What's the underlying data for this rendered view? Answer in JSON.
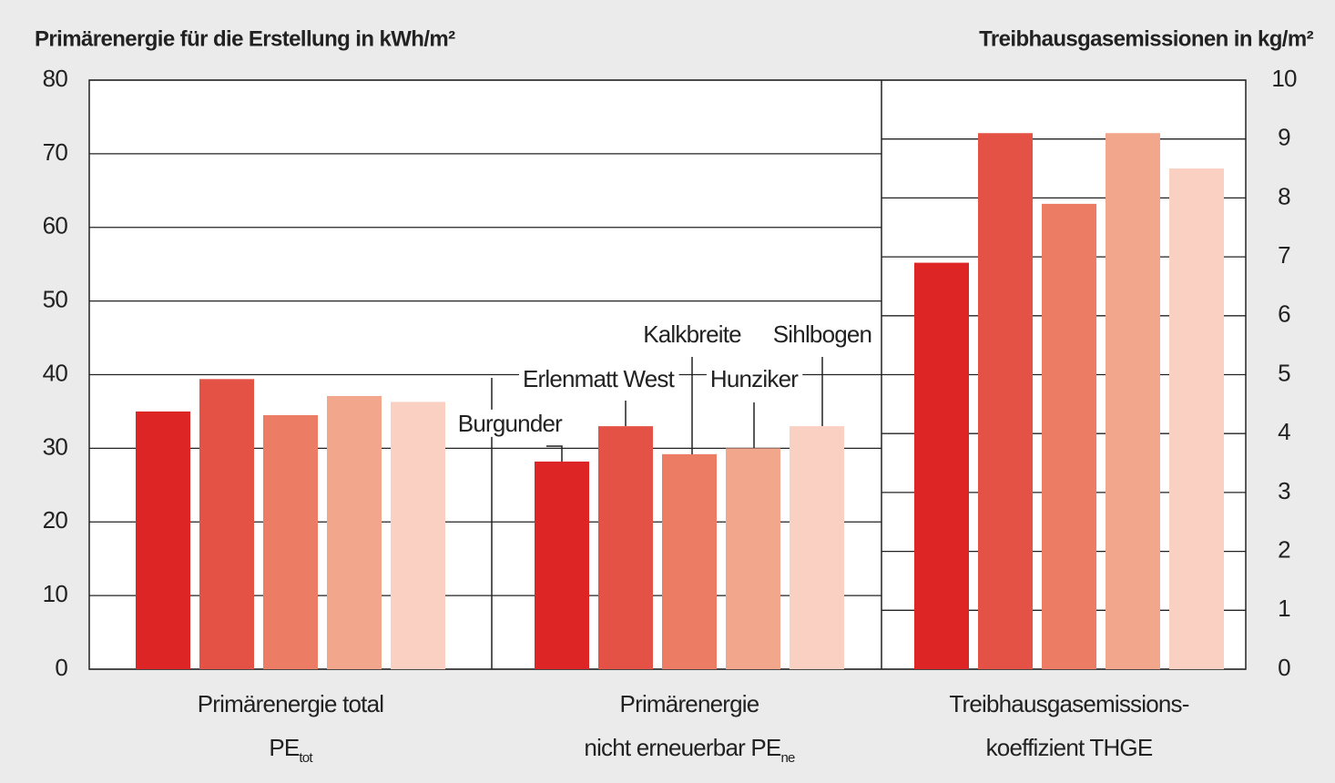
{
  "chart_data": {
    "type": "bar",
    "title": "Primärenergie für die Erstellung in kWh/m²",
    "y2_title": "Treibhausgasemissionen in kg/m²",
    "categories": [
      {
        "lines": [
          "Primärenergie total",
          "PE"
        ],
        "subscript": "tot"
      },
      {
        "lines": [
          "Primärenergie",
          "nicht erneuerbar PE"
        ],
        "subscript": "ne"
      },
      {
        "lines": [
          "Treibhausgasemissions-",
          "koeffizient THGE"
        ]
      }
    ],
    "category_axis": [
      "y",
      "y",
      "y2"
    ],
    "series": [
      {
        "name": "Burgunder",
        "color": "#dd2526",
        "values": [
          35,
          28.2,
          6.9
        ]
      },
      {
        "name": "Erlenmatt West",
        "color": "#e35244",
        "values": [
          39.4,
          33,
          9.1
        ]
      },
      {
        "name": "Kalkbreite",
        "color": "#ec7d64",
        "values": [
          34.5,
          29.2,
          7.9
        ]
      },
      {
        "name": "Hunziker",
        "color": "#f2a68c",
        "values": [
          37.1,
          30,
          9.1
        ]
      },
      {
        "name": "Sihlbogen",
        "color": "#f9d0c1",
        "values": [
          36.3,
          33,
          8.5
        ]
      }
    ],
    "ylim": [
      0,
      80
    ],
    "yticks": [
      0,
      10,
      20,
      30,
      40,
      50,
      60,
      70,
      80
    ],
    "y2lim": [
      0,
      10
    ],
    "y2ticks": [
      0,
      1,
      2,
      3,
      4,
      5,
      6,
      7,
      8,
      9,
      10
    ],
    "grid": true
  }
}
